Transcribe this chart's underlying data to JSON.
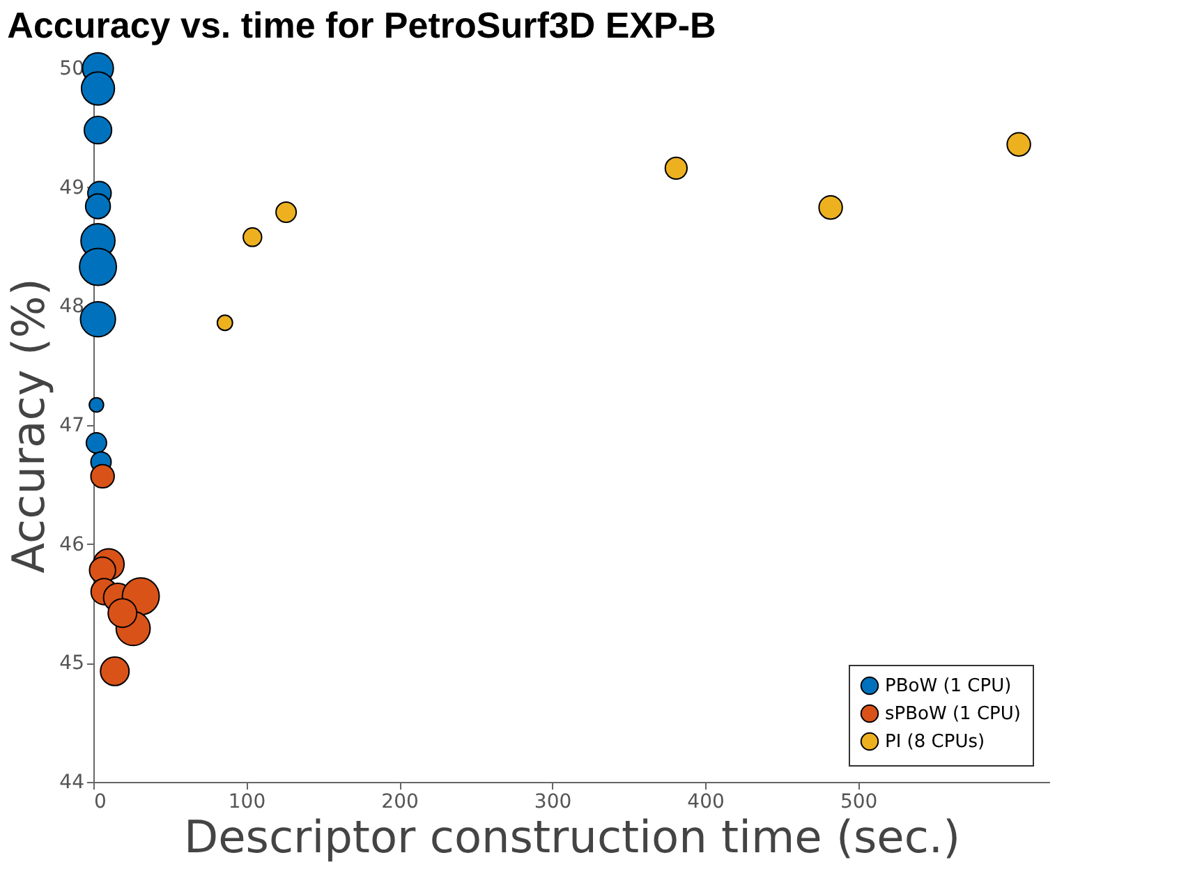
{
  "chart_data": {
    "type": "bubble",
    "title": "Accuracy vs. time for PetroSurf3D EXP-B",
    "xlabel": "Descriptor construction time (sec.)",
    "ylabel": "Accuracy (%)",
    "xlim": [
      0,
      625
    ],
    "xticks": [
      0,
      100,
      200,
      300,
      400,
      500
    ],
    "ylim": [
      44,
      50
    ],
    "yticks": [
      44,
      45,
      46,
      47,
      48,
      49,
      50
    ],
    "grid": false,
    "legend": "bottom right",
    "marker": "circle",
    "series": [
      {
        "name": "PBoW (1 CPU)",
        "color": "#0072bd",
        "x": [
          3,
          3,
          3,
          4,
          3,
          3,
          3,
          3,
          2,
          2,
          5
        ],
        "values": [
          50.0,
          49.83,
          49.48,
          48.95,
          48.84,
          48.55,
          48.33,
          47.89,
          47.17,
          46.85,
          46.69
        ],
        "sizes": [
          0.7,
          0.8,
          0.55,
          0.4,
          0.45,
          0.85,
          1,
          0.9,
          0.15,
          0.3,
          0.3
        ]
      },
      {
        "name": "sPBoW (1 CPU)",
        "color": "#d95319",
        "x": [
          6,
          10,
          6,
          7,
          16,
          31,
          26,
          19,
          14
        ],
        "values": [
          46.57,
          45.83,
          45.78,
          45.6,
          45.55,
          45.56,
          45.29,
          45.42,
          44.93
        ],
        "sizes": [
          0.4,
          0.7,
          0.5,
          0.5,
          0.6,
          1,
          0.85,
          0.6,
          0.6
        ]
      },
      {
        "name": "PI (8 CPUs)",
        "color": "#edb120",
        "x": [
          86,
          104,
          126,
          381,
          482,
          605
        ],
        "values": [
          47.86,
          48.58,
          48.79,
          49.16,
          48.83,
          49.36
        ],
        "sizes": [
          0.17,
          0.25,
          0.3,
          0.35,
          0.4,
          0.4
        ]
      }
    ]
  }
}
